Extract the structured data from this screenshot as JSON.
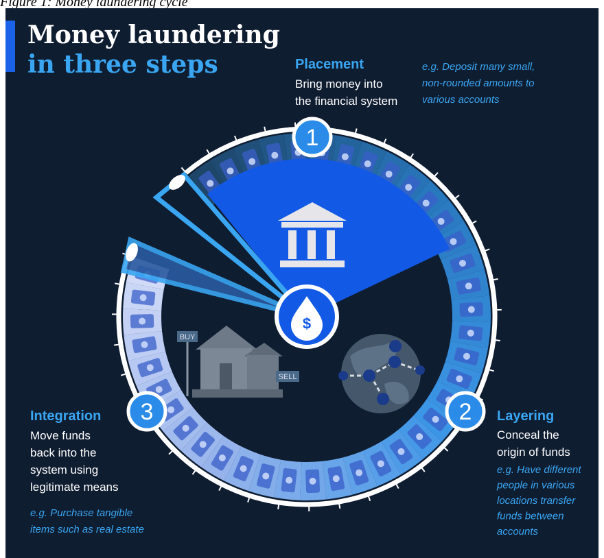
{
  "caption": "Figure 1: Money laundering cycle",
  "title": {
    "lines": [
      "Money laundering",
      "in three steps"
    ]
  },
  "steps": [
    {
      "number": "1",
      "name": "Placement",
      "description_lines": [
        "Bring money into",
        "the financial system"
      ],
      "example_lines": [
        "e.g. Deposit many small,",
        "non-rounded amounts to",
        "various accounts"
      ]
    },
    {
      "number": "2",
      "name": "Layering",
      "description_lines": [
        "Conceal the",
        "origin of funds"
      ],
      "example_lines": [
        "e.g. Have different",
        "people in various",
        "locations transfer",
        "funds between",
        "accounts"
      ]
    },
    {
      "number": "3",
      "name": "Integration",
      "description_lines": [
        "Move funds",
        "back into the",
        "system using",
        "legitimate means"
      ],
      "example_lines": [
        "e.g. Purchase tangible",
        "items such as real estate"
      ]
    }
  ],
  "signs": [
    "BUY",
    "SELL"
  ],
  "center_symbol": "$"
}
